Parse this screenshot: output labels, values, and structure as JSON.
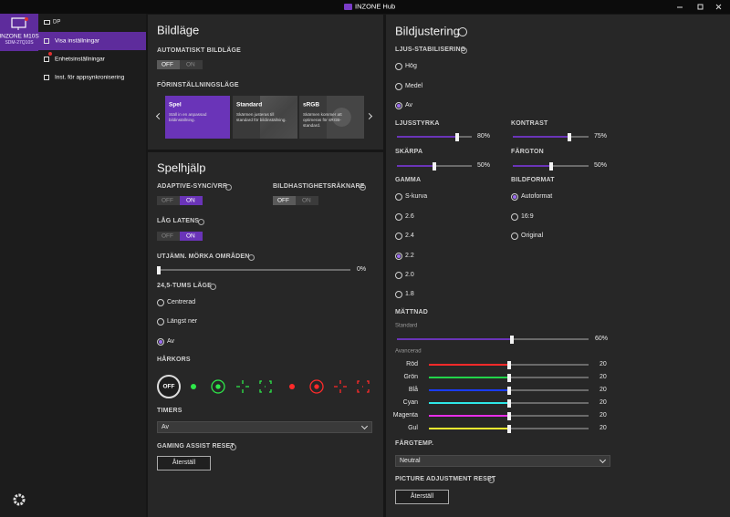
{
  "title_bar": {
    "title": "INZONE Hub"
  },
  "sidebar": {
    "device_name": "INZONE M10S",
    "device_model": "SDM-27Q10S",
    "input": "DP",
    "menu": [
      "Visa inställningar",
      "Enhetsinställningar",
      "Inst. för appsynkronisering"
    ],
    "active_menu": 0
  },
  "picture_mode": {
    "heading": "Bildläge",
    "auto_mode": {
      "label": "AUTOMATISKT BILDLÄGE",
      "off": "OFF",
      "on": "ON",
      "state": "off"
    },
    "presets": {
      "label": "FÖRINSTÄLLNINGSLÄGE",
      "selected": 0,
      "items": [
        {
          "name": "Spel",
          "description": "Ställ in en anpassad bildinställning."
        },
        {
          "name": "Standard",
          "description": "Skärmen justeras till standard för bildinställning."
        },
        {
          "name": "sRGB",
          "description": "Skärmen kommer att optimeras för sRGB-standard."
        }
      ]
    }
  },
  "game_assist": {
    "heading": "Spelhjälp",
    "adaptive_sync": {
      "label": "ADAPTIVE-SYNC/VRR",
      "off": "OFF",
      "on": "ON",
      "state": "on"
    },
    "frame_counter": {
      "label": "BILDHASTIGHETSRÄKNARE",
      "off": "OFF",
      "on": "ON",
      "state": "off"
    },
    "low_latency": {
      "label": "LÅG LATENS",
      "off": "OFF",
      "on": "ON",
      "state": "on"
    },
    "black_equalizer": {
      "label": "UTJÄMN. MÖRKA OMRÅDEN",
      "value": 0,
      "value_label": "0%",
      "range": [
        0,
        100
      ]
    },
    "screen_size": {
      "label": "24,5-TUMS LÄGE",
      "options": [
        "Centrerad",
        "Längst ner",
        "Av"
      ],
      "selected": 2
    },
    "crosshair": {
      "label": "HÅRKORS",
      "off": "OFF"
    },
    "timers": {
      "label": "TIMERS",
      "value": "Av"
    },
    "reset": {
      "label": "GAMING ASSIST RESET",
      "button": "Återställ"
    }
  },
  "picture_adjust": {
    "heading": "Bildjustering",
    "light_stabilization": {
      "label": "LJUS-STABILISERING",
      "options": [
        "Hög",
        "Medel",
        "Av"
      ],
      "selected": 2
    },
    "brightness": {
      "label": "LJUSSTYRKA",
      "value": 80,
      "value_label": "80%",
      "range": [
        0,
        100
      ]
    },
    "contrast": {
      "label": "KONTRAST",
      "value": 75,
      "value_label": "75%",
      "range": [
        0,
        100
      ]
    },
    "sharpness": {
      "label": "SKÄRPA",
      "value": 50,
      "value_label": "50%",
      "range": [
        0,
        100
      ]
    },
    "hue": {
      "label": "FÄRGTON",
      "value": 50,
      "value_label": "50%",
      "range": [
        0,
        100
      ]
    },
    "gamma": {
      "label": "GAMMA",
      "options": [
        "S-kurva",
        "2.6",
        "2.4",
        "2.2",
        "2.0",
        "1.8"
      ],
      "selected": 3
    },
    "aspect": {
      "label": "BILDFORMAT",
      "options": [
        "Autoformat",
        "16:9",
        "Original"
      ],
      "selected": 0
    },
    "saturation": {
      "label": "MÄTTNAD",
      "standard_label": "Standard",
      "standard": {
        "value": 60,
        "value_label": "60%",
        "range": [
          0,
          100
        ]
      },
      "advanced_label": "Avancerad",
      "range": [
        0,
        40
      ],
      "colors": [
        {
          "name": "Röd",
          "value": 20,
          "color": "#ff2a2a"
        },
        {
          "name": "Grön",
          "value": 20,
          "color": "#22d44a"
        },
        {
          "name": "Blå",
          "value": 20,
          "color": "#1a3cff"
        },
        {
          "name": "Cyan",
          "value": 20,
          "color": "#2ee6e6"
        },
        {
          "name": "Magenta",
          "value": 20,
          "color": "#e82ee8"
        },
        {
          "name": "Gul",
          "value": 20,
          "color": "#f2f030"
        }
      ]
    },
    "color_temp": {
      "label": "FÄRGTEMP.",
      "value": "Neutral"
    },
    "reset": {
      "label": "PICTURE ADJUSTMENT RESET",
      "button": "Återställ"
    }
  }
}
